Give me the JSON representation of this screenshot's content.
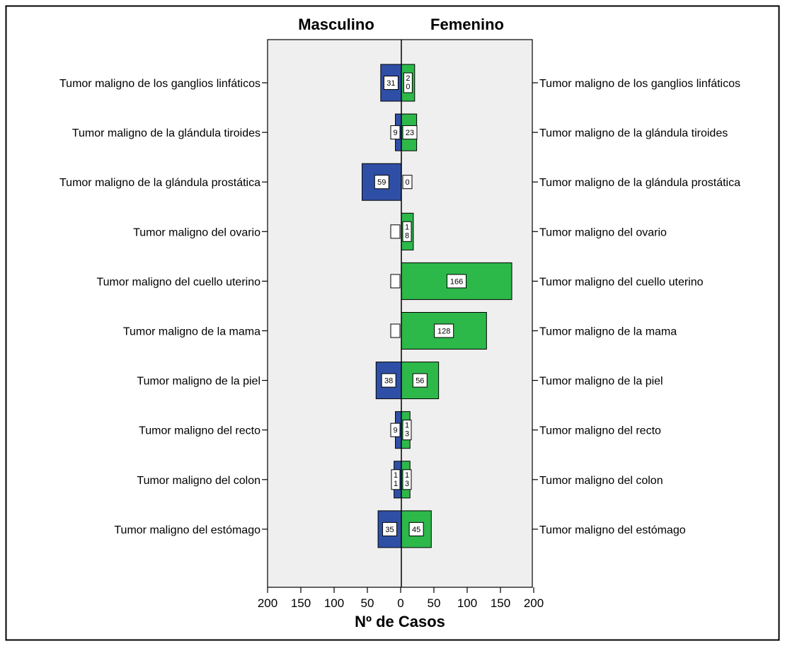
{
  "chart_data": {
    "type": "bar",
    "orientation": "horizontal",
    "layout": "population-pyramid",
    "categories": [
      "Tumor maligno de los ganglios linfáticos",
      "Tumor maligno de la glándula tiroides",
      "Tumor maligno de la glándula prostática",
      "Tumor maligno del ovario",
      "Tumor maligno del cuello uterino",
      "Tumor maligno de la mama",
      "Tumor maligno de la piel",
      "Tumor maligno del recto",
      "Tumor maligno del colon",
      "Tumor maligno del estómago"
    ],
    "series": [
      {
        "name": "Masculino",
        "side": "left",
        "color": "#2f4fa6",
        "values": [
          31,
          9,
          59,
          0,
          0,
          0,
          38,
          9,
          11,
          35
        ],
        "labels": [
          "31",
          "9",
          "59",
          "",
          "",
          "",
          "38",
          "9",
          "1\n1",
          "35"
        ]
      },
      {
        "name": "Femenino",
        "side": "right",
        "color": "#2db84a",
        "values": [
          20,
          23,
          0,
          18,
          166,
          128,
          56,
          13,
          13,
          45
        ],
        "labels": [
          "2\n0",
          "23",
          "0",
          "1\n8",
          "166",
          "128",
          "56",
          "1\n3",
          "1\n3",
          "45"
        ]
      }
    ],
    "xlabel": "Nº de Casos",
    "xlim": [
      0,
      200
    ],
    "xticks": [
      "200",
      "150",
      "100",
      "50",
      "0",
      "50",
      "100",
      "150",
      "200"
    ],
    "plot_background": "#efefef",
    "grid": false,
    "legend": "top"
  }
}
